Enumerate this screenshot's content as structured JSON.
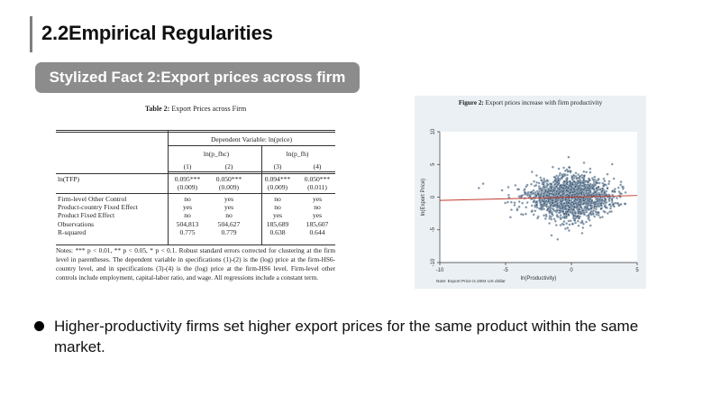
{
  "slide": {
    "title": "2.2Empirical Regularities",
    "fact_banner": "Stylized Fact 2:Export prices across firm",
    "bullet": "Higher-productivity firms set higher export prices for the same product within the same market."
  },
  "table": {
    "caption_prefix": "Table 2:",
    "caption_text": "Export Prices across Firm",
    "dep_var": "Dependent Variable: ln(price)",
    "group1": "ln(p_fhc)",
    "group2": "ln(p_fh)",
    "col_numbers": [
      "(1)",
      "(2)",
      "(3)",
      "(4)"
    ],
    "rows": [
      {
        "label": "ln(TFP)",
        "values": [
          "0.095***",
          "0.050***",
          "0.094***",
          "0.050***"
        ]
      },
      {
        "label": "",
        "values": [
          "(0.009)",
          "(0.009)",
          "(0.009)",
          "(0.011)"
        ]
      },
      {
        "label": "Firm-level Other Control",
        "values": [
          "no",
          "yes",
          "no",
          "yes"
        ]
      },
      {
        "label": "Product-country Fixed Effect",
        "values": [
          "yes",
          "yes",
          "no",
          "no"
        ]
      },
      {
        "label": "Product Fixed Effect",
        "values": [
          "no",
          "no",
          "yes",
          "yes"
        ]
      },
      {
        "label": "Observations",
        "values": [
          "504,813",
          "504,627",
          "185,689",
          "185,607"
        ]
      },
      {
        "label": "R-squared",
        "values": [
          "0.775",
          "0.779",
          "0.638",
          "0.644"
        ]
      }
    ],
    "notes": "Notes: *** p < 0.01, ** p < 0.05, * p < 0.1. Robust standard errors corrected for clustering at the firm level in parentheses. The dependent variable in specifications (1)-(2) is the (log) price at the firm-HS6-country level, and in specifications (3)-(4) is the (log) price at the firm-HS6 level. Firm-level other controls include employment, capital-labor ratio, and wage. All regressions include a constant term."
  },
  "figure": {
    "caption_prefix": "Figure 2:",
    "caption_text": "Export prices increase with firm productivity",
    "xlabel": "ln(Productivity)",
    "ylabel": "ln(Export Price)",
    "note": "Note: Export Price is 2004 US dollar",
    "colors": {
      "points": "#1a3a5c",
      "fit_line": "#c0392b",
      "panel": "#eaf0f4"
    },
    "chart_data": {
      "type": "scatter",
      "title": "Export prices increase with firm productivity",
      "xlabel": "ln(Productivity)",
      "ylabel": "ln(Export Price)",
      "xlim": [
        -10,
        5
      ],
      "ylim": [
        -10,
        10
      ],
      "xticks": [
        -10,
        -5,
        0,
        5
      ],
      "yticks": [
        -10,
        -5,
        0,
        5,
        10
      ],
      "xtick_labels": [
        "-10",
        "-5",
        "0",
        "5"
      ],
      "ytick_labels": [
        "-10",
        "-5",
        "0",
        "5",
        "10"
      ],
      "cloud": {
        "x_center": 0.0,
        "x_sd": 1.7,
        "y_center": 0.0,
        "y_sd": 1.9
      },
      "fit_line": {
        "x": [
          -10,
          5
        ],
        "y": [
          -0.5,
          0.25
        ]
      },
      "grid": false
    }
  }
}
